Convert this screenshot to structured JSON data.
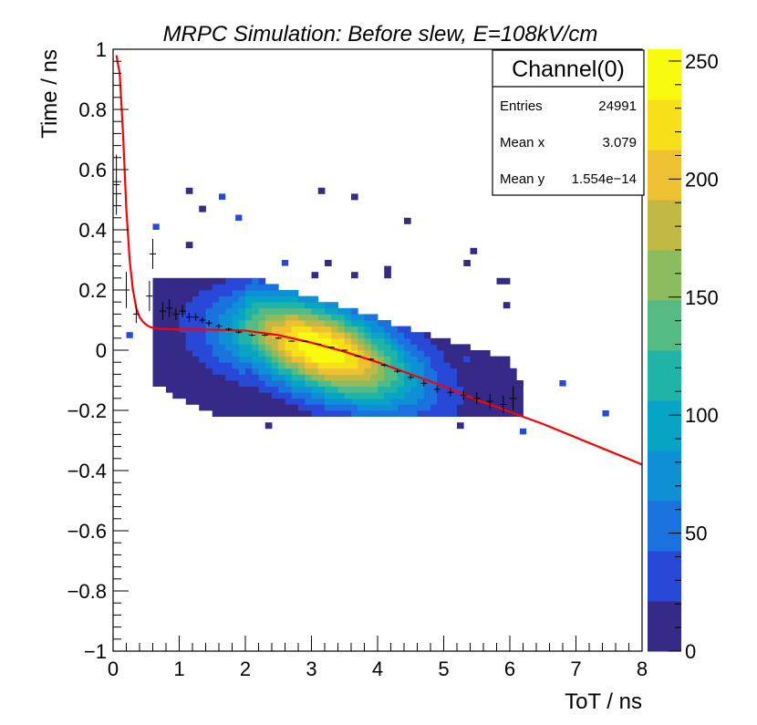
{
  "chart_data": {
    "type": "heatmap",
    "title": "MRPC Simulation: Before slew, E=108kV/cm",
    "xlabel": "ToT / ns",
    "ylabel": "Time / ns",
    "xlim": [
      0,
      8
    ],
    "ylim": [
      -1,
      1
    ],
    "x_ticks": [
      "0",
      "1",
      "2",
      "3",
      "4",
      "5",
      "6",
      "7",
      "8"
    ],
    "y_ticks": [
      "−1",
      "−0.8",
      "−0.6",
      "−0.4",
      "−0.2",
      "0",
      "0.2",
      "0.4",
      "0.6",
      "0.8",
      "1"
    ],
    "colorbar": {
      "min": 0,
      "max": 255,
      "ticks": [
        "0",
        "50",
        "100",
        "150",
        "200",
        "250"
      ],
      "palette": [
        "#352a87",
        "#2848d8",
        "#1a72de",
        "#0f8fd6",
        "#07a5c5",
        "#20b3a8",
        "#55ba84",
        "#8bbc5e",
        "#c1b944",
        "#eec132",
        "#f7e018",
        "#f9fb0e"
      ]
    },
    "stats_box": {
      "name": "Channel(0)",
      "rows": [
        {
          "label": "Entries",
          "value": "24991"
        },
        {
          "label": "Mean x",
          "value": "3.079"
        },
        {
          "label": "Mean y",
          "value": "1.554e−14"
        }
      ]
    },
    "histogram": {
      "description_peak": {
        "x": 3.1,
        "y": 0.02,
        "max_count": 255
      },
      "bin_width_x": 0.1,
      "bin_width_y": 0.02
    },
    "profile_points": {
      "x": [
        0.05,
        0.2,
        0.35,
        0.55,
        0.6,
        0.75,
        0.85,
        0.95,
        1.05,
        1.15,
        1.25,
        1.35,
        1.45,
        1.6,
        1.75,
        1.9,
        2.1,
        2.3,
        2.5,
        2.7,
        2.9,
        3.1,
        3.3,
        3.5,
        3.7,
        3.9,
        4.1,
        4.3,
        4.5,
        4.7,
        4.9,
        5.1,
        5.3,
        5.5,
        5.7,
        5.9,
        6.05
      ],
      "y": [
        0.55,
        0.2,
        0.12,
        0.18,
        0.32,
        0.13,
        0.14,
        0.12,
        0.13,
        0.11,
        0.11,
        0.1,
        0.09,
        0.08,
        0.07,
        0.06,
        0.05,
        0.05,
        0.04,
        0.03,
        0.03,
        0.02,
        0.01,
        0.0,
        -0.02,
        -0.03,
        -0.05,
        -0.07,
        -0.09,
        -0.11,
        -0.13,
        -0.14,
        -0.15,
        -0.16,
        -0.17,
        -0.18,
        -0.16
      ],
      "y_err": [
        0.1,
        0.06,
        0.03,
        0.05,
        0.05,
        0.03,
        0.03,
        0.02,
        0.02,
        0.015,
        0.012,
        0.01,
        0.01,
        0.008,
        0.006,
        0.005,
        0.004,
        0.003,
        0.003,
        0.002,
        0.002,
        0.002,
        0.002,
        0.002,
        0.003,
        0.004,
        0.005,
        0.006,
        0.008,
        0.01,
        0.012,
        0.014,
        0.016,
        0.02,
        0.025,
        0.03,
        0.04
      ]
    },
    "fit_curve": {
      "color": "#ff0000",
      "x": [
        0.05,
        0.1,
        0.15,
        0.2,
        0.25,
        0.3,
        0.35,
        0.4,
        0.45,
        0.5,
        0.55,
        0.6,
        0.7,
        0.8,
        1.0,
        1.5,
        2.0,
        2.5,
        3.0,
        3.5,
        4.0,
        4.5,
        5.0,
        5.5,
        6.0,
        6.5,
        7.0,
        7.5,
        8.0
      ],
      "y": [
        0.98,
        0.92,
        0.72,
        0.47,
        0.3,
        0.2,
        0.14,
        0.11,
        0.095,
        0.085,
        0.078,
        0.074,
        0.071,
        0.07,
        0.069,
        0.068,
        0.065,
        0.05,
        0.025,
        -0.005,
        -0.04,
        -0.08,
        -0.12,
        -0.165,
        -0.205,
        -0.245,
        -0.29,
        -0.335,
        -0.38
      ]
    }
  }
}
